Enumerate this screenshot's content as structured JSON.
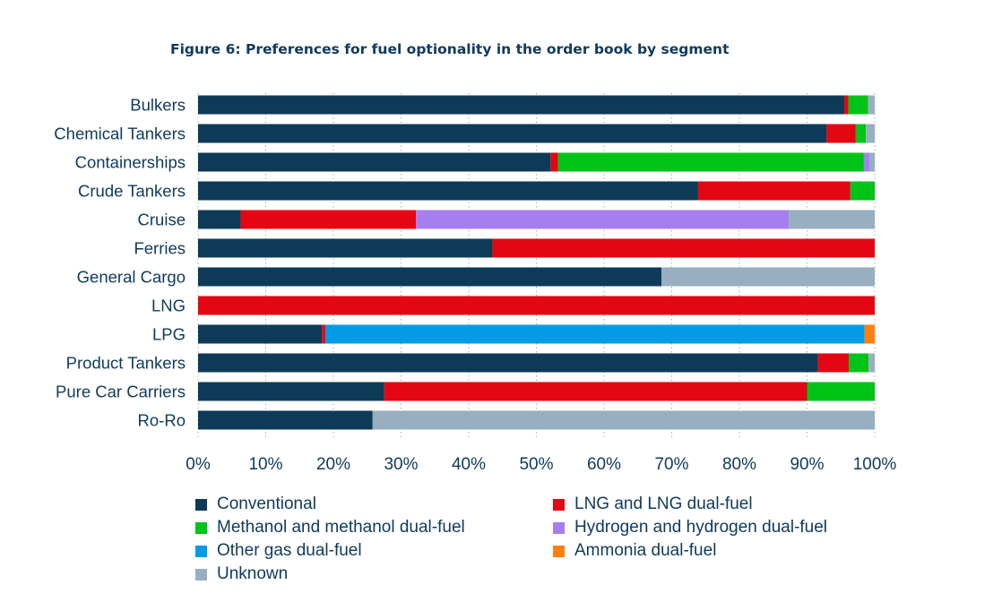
{
  "chart_data": {
    "type": "bar",
    "orientation": "horizontal",
    "stacked": true,
    "title": "Figure 6: Preferences for fuel optionality in the order book by segment",
    "xlabel": "",
    "ylabel": "",
    "xlim": [
      0,
      100
    ],
    "x_ticks": [
      "0%",
      "10%",
      "20%",
      "30%",
      "40%",
      "50%",
      "60%",
      "70%",
      "80%",
      "90%",
      "100%"
    ],
    "grid": "vertical dotted",
    "legend_position": "bottom",
    "categories": [
      "Bulkers",
      "Chemical Tankers",
      "Containerships",
      "Crude Tankers",
      "Cruise",
      "Ferries",
      "General Cargo",
      "LNG",
      "LPG",
      "Product Tankers",
      "Pure Car Carriers",
      "Ro-Ro"
    ],
    "series": [
      {
        "name": "Conventional",
        "color": "#0d3b57",
        "values": [
          95.5,
          92.9,
          52.1,
          73.9,
          6.3,
          43.5,
          68.5,
          0,
          18.3,
          91.6,
          27.5,
          25.8
        ]
      },
      {
        "name": "LNG and LNG dual-fuel",
        "color": "#e30613",
        "values": [
          0.6,
          4.3,
          1.1,
          22.5,
          25.9,
          56.5,
          0,
          100,
          0.5,
          4.6,
          62.5,
          0
        ]
      },
      {
        "name": "Methanol and methanol dual-fuel",
        "color": "#00c317",
        "values": [
          2.9,
          1.5,
          45.2,
          3.6,
          0,
          0,
          0,
          0,
          0,
          2.9,
          10.0,
          0
        ]
      },
      {
        "name": "Hydrogen and hydrogen dual-fuel",
        "color": "#a57ff0",
        "values": [
          0,
          0,
          0.8,
          0,
          55.1,
          0,
          0,
          0,
          0,
          0,
          0,
          0
        ]
      },
      {
        "name": "Other gas dual-fuel",
        "color": "#039be5",
        "values": [
          0,
          0,
          0,
          0,
          0,
          0,
          0,
          0,
          79.7,
          0,
          0,
          0
        ]
      },
      {
        "name": "Ammonia dual-fuel",
        "color": "#ff7f0e",
        "values": [
          0,
          0,
          0,
          0,
          0,
          0,
          0,
          0,
          1.5,
          0,
          0,
          0
        ]
      },
      {
        "name": "Unknown",
        "color": "#97afc0",
        "values": [
          1.0,
          1.3,
          0.8,
          0,
          12.7,
          0,
          31.5,
          0,
          0,
          0.9,
          0,
          74.2
        ]
      }
    ],
    "legend_order": [
      "Conventional",
      "LNG and LNG dual-fuel",
      "Methanol and methanol dual-fuel",
      "Hydrogen and hydrogen dual-fuel",
      "Other gas dual-fuel",
      "Ammonia dual-fuel",
      "Unknown"
    ]
  }
}
